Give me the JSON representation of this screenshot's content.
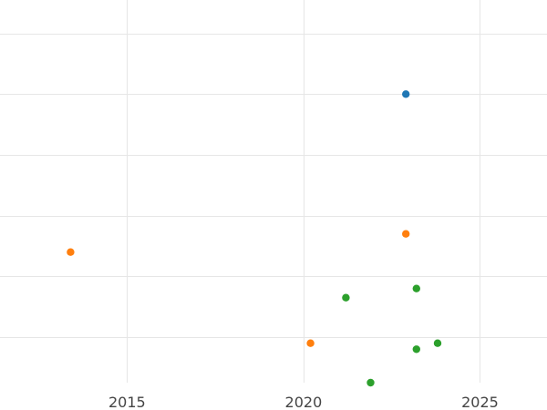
{
  "chart_data": {
    "type": "scatter",
    "title": "",
    "xlabel": "",
    "ylabel": "",
    "xlim": [
      2011.4,
      2026.9
    ],
    "ylim": [
      -0.75,
      5.55
    ],
    "x_ticks": [
      2015,
      2020,
      2025
    ],
    "x_tick_labels": [
      "2015",
      "2020",
      "2025"
    ],
    "y_gridlines": [
      0,
      1,
      2,
      3,
      4,
      5
    ],
    "y_tick_labels_visible": false,
    "grid": true,
    "legend": "none",
    "series": [
      {
        "color": "#1f77b4",
        "points": [
          {
            "x": 2022.9,
            "y": 4.0
          }
        ]
      },
      {
        "color": "#ff7f0e",
        "points": [
          {
            "x": 2013.4,
            "y": 1.4
          },
          {
            "x": 2022.9,
            "y": 1.7
          },
          {
            "x": 2020.2,
            "y": -0.1
          }
        ]
      },
      {
        "color": "#2ca02c",
        "points": [
          {
            "x": 2023.2,
            "y": 0.8
          },
          {
            "x": 2021.2,
            "y": 0.65
          },
          {
            "x": 2023.8,
            "y": -0.1
          },
          {
            "x": 2023.2,
            "y": -0.2
          },
          {
            "x": 2021.9,
            "y": -0.75
          }
        ]
      }
    ]
  }
}
